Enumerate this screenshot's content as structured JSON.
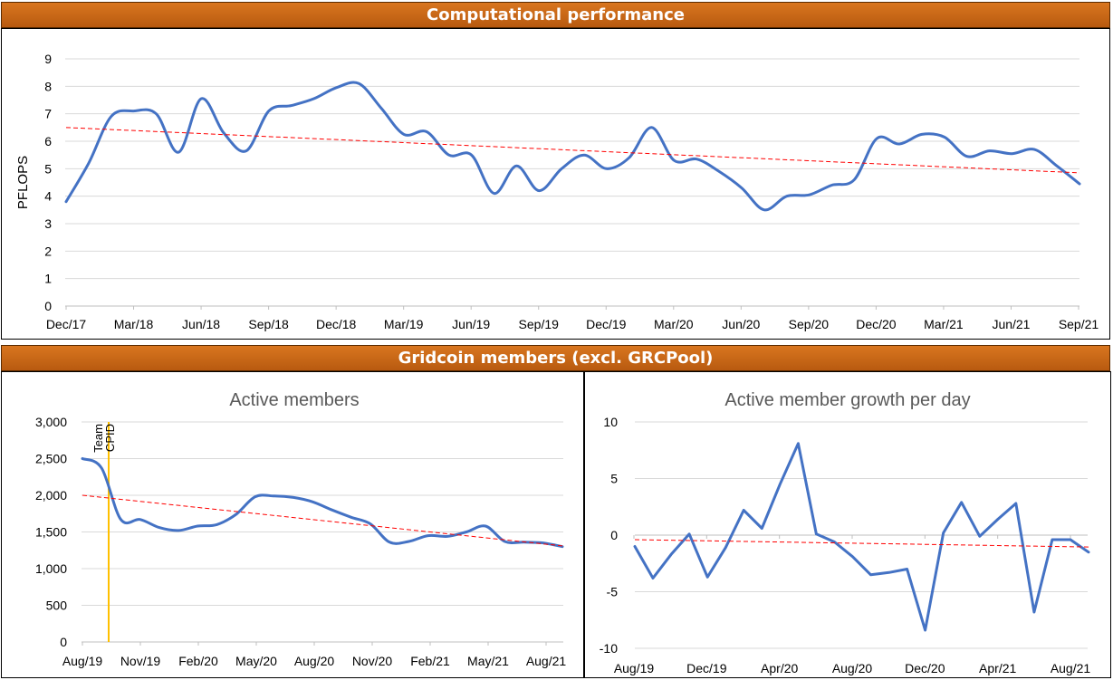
{
  "banners": {
    "top": "Computational performance",
    "bottom": "Gridcoin members (excl. GRCPool)"
  },
  "colors": {
    "line": "#4472c4",
    "trend": "#ff0000",
    "event": "#ffc000",
    "banner": "#c5651a"
  },
  "chart_data": [
    {
      "type": "line",
      "title": "",
      "xlabel": "",
      "ylabel": "PFLOPS",
      "ylim": [
        0,
        9
      ],
      "yticks": [
        "0",
        "1",
        "2",
        "3",
        "4",
        "5",
        "6",
        "7",
        "8",
        "9"
      ],
      "xticks": [
        "Dec/17",
        "Mar/18",
        "Jun/18",
        "Sep/18",
        "Dec/18",
        "Mar/19",
        "Jun/19",
        "Sep/19",
        "Dec/19",
        "Mar/20",
        "Jun/20",
        "Sep/20",
        "Dec/20",
        "Mar/21",
        "Jun/21",
        "Sep/21"
      ],
      "grid": true,
      "series": [
        {
          "values": [
            3.8,
            5.2,
            6.9,
            7.1,
            7.0,
            5.6,
            7.55,
            6.3,
            5.65,
            7.1,
            7.3,
            7.55,
            7.95,
            8.1,
            7.2,
            6.25,
            6.35,
            5.5,
            5.5,
            4.1,
            5.1,
            4.2,
            5.0,
            5.5,
            5.0,
            5.4,
            6.5,
            5.3,
            5.35,
            4.9,
            4.3,
            3.5,
            4.0,
            4.05,
            4.4,
            4.6,
            6.1,
            5.9,
            6.25,
            6.15,
            5.45,
            5.65,
            5.55,
            5.7,
            5.1,
            4.45
          ]
        }
      ],
      "trend": [
        6.5,
        4.85
      ]
    },
    {
      "type": "line",
      "title": "Active members",
      "ylim": [
        0,
        3000
      ],
      "yticks": [
        "0",
        "500",
        "1,000",
        "1,500",
        "2,000",
        "2,500",
        "3,000"
      ],
      "xticks": [
        "Aug/19",
        "Nov/19",
        "Feb/20",
        "May/20",
        "Aug/20",
        "Nov/20",
        "Feb/21",
        "May/21",
        "Aug/21"
      ],
      "grid": true,
      "annotations": [
        "Team",
        "CPID"
      ],
      "series": [
        {
          "values": [
            2500,
            2370,
            1670,
            1670,
            1560,
            1520,
            1580,
            1600,
            1740,
            1980,
            1990,
            1970,
            1910,
            1800,
            1700,
            1610,
            1360,
            1370,
            1450,
            1440,
            1500,
            1580,
            1370,
            1360,
            1350,
            1300
          ]
        }
      ],
      "trend": [
        2000,
        1310
      ]
    },
    {
      "type": "line",
      "title": "Active member growth per day",
      "ylim": [
        -10,
        10
      ],
      "yticks": [
        "-10",
        "-5",
        "0",
        "5",
        "10"
      ],
      "xticks": [
        "Aug/19",
        "Dec/19",
        "Apr/20",
        "Aug/20",
        "Dec/20",
        "Apr/21",
        "Aug/21"
      ],
      "grid": true,
      "series": [
        {
          "values": [
            -1.0,
            -3.8,
            -1.7,
            0.1,
            -3.7,
            -1.1,
            2.2,
            0.6,
            4.5,
            8.1,
            0.1,
            -0.6,
            -1.9,
            -3.5,
            -3.3,
            -3.0,
            -8.4,
            0.2,
            2.9,
            -0.1,
            1.4,
            2.8,
            -6.8,
            -0.4,
            -0.4,
            -1.5
          ]
        }
      ],
      "trend": [
        -0.4,
        -1.05
      ]
    }
  ]
}
